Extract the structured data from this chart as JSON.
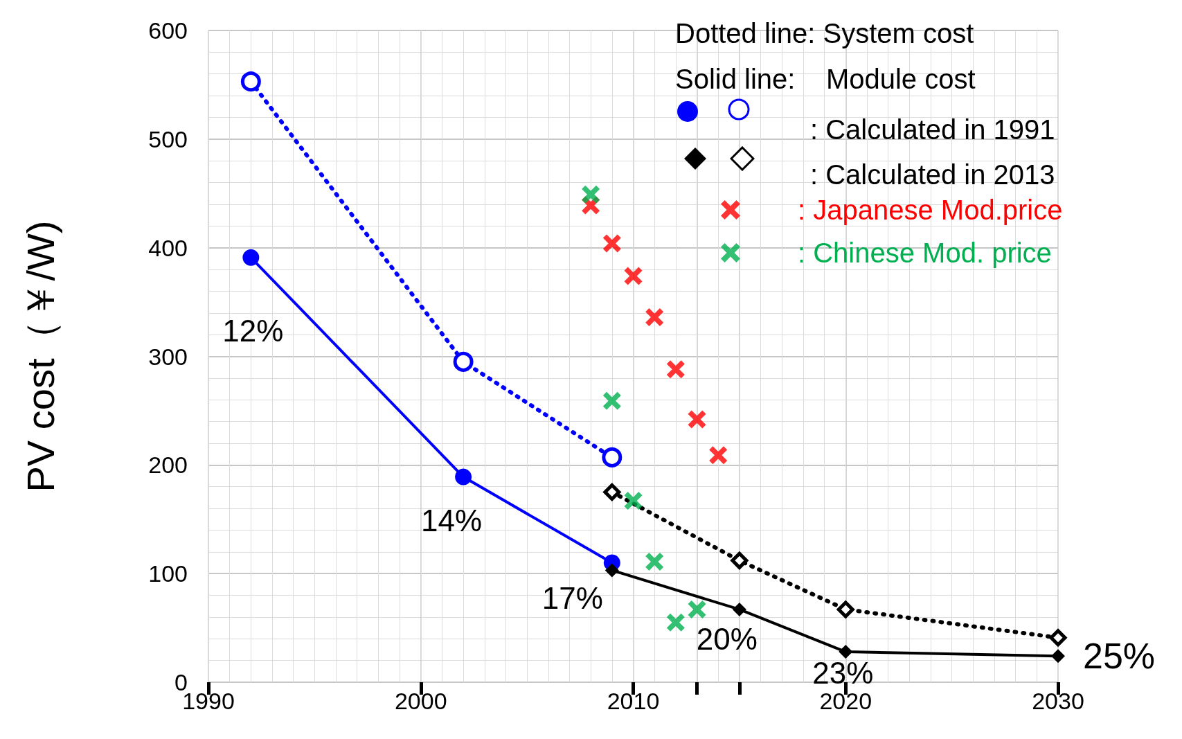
{
  "chart_data": {
    "type": "line",
    "ylabel": "PV cost（￥/W)",
    "xlim": [
      1990,
      2030
    ],
    "xticks": [
      1990,
      2000,
      2010,
      {
        "value": 2013,
        "label": null
      },
      {
        "value": 2015,
        "label": null
      },
      2020,
      2030
    ],
    "ylim": [
      0,
      600
    ],
    "yticks": [
      0,
      100,
      200,
      300,
      400,
      500,
      600
    ],
    "grid": true,
    "legend": "top right",
    "series": [
      {
        "color": "#0000ff",
        "line_style": "dotted",
        "marker": "circle",
        "x": [
          1992,
          2002,
          2009
        ],
        "values": [
          553,
          295,
          207
        ]
      },
      {
        "color": "#0000ff",
        "line_style": "solid",
        "marker": "circle",
        "x": [
          1992,
          2002,
          2009
        ],
        "values": [
          391,
          189,
          110
        ]
      },
      {
        "color": "#000000",
        "line_style": "dotted",
        "marker": "diamond",
        "x": [
          2009,
          2015,
          2020,
          2030
        ],
        "values": [
          175,
          112,
          67,
          41
        ]
      },
      {
        "color": "#000000",
        "line_style": "solid",
        "marker": "diamond",
        "x": [
          2009,
          2015,
          2020,
          2030
        ],
        "values": [
          103,
          67,
          28,
          24
        ]
      },
      {
        "type": "scatter",
        "name": ": Japanese Mod.price",
        "color": "#ff0000",
        "marker": "cross",
        "x": [
          2008,
          2009,
          2010,
          2011,
          2012,
          2013,
          2014
        ],
        "values": [
          439,
          404,
          374,
          336,
          288,
          242,
          209
        ]
      },
      {
        "type": "scatter",
        "name": ": Chinese Mod. price",
        "color": "#00b050",
        "marker": "cross",
        "x": [
          2008,
          2009,
          2010,
          2011,
          2012,
          2013
        ],
        "values": [
          449,
          259,
          167,
          111,
          55,
          67
        ]
      }
    ],
    "annotations": [
      "Dotted line: System cost",
      "Solid line:    Module cost",
      ": Calculated in 1991",
      ": Calculated in 2013",
      "12%",
      "14%",
      "17%",
      "20%",
      "23%",
      "25%"
    ]
  }
}
